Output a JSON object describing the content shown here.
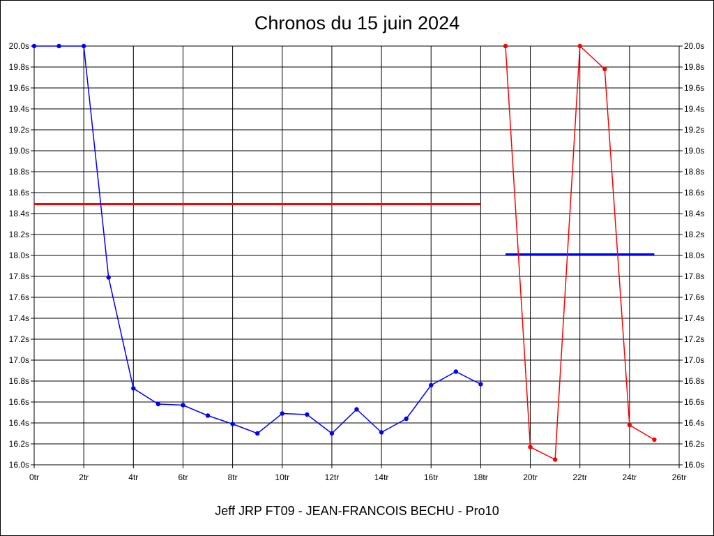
{
  "chart_data": {
    "type": "line",
    "title": "Chronos du 15 juin 2024",
    "subtitle": "Jeff JRP FT09 - JEAN-FRANCOIS BECHU - Pro10",
    "x_ticks": [
      "0tr",
      "2tr",
      "4tr",
      "6tr",
      "8tr",
      "10tr",
      "12tr",
      "14tr",
      "16tr",
      "18tr",
      "20tr",
      "22tr",
      "24tr",
      "26tr"
    ],
    "y_ticks": [
      "16.0s",
      "16.2s",
      "16.4s",
      "16.6s",
      "16.8s",
      "17.0s",
      "17.2s",
      "17.4s",
      "17.6s",
      "17.8s",
      "18.0s",
      "18.2s",
      "18.4s",
      "18.6s",
      "18.8s",
      "19.0s",
      "19.2s",
      "19.4s",
      "19.6s",
      "19.8s",
      "20.0s"
    ],
    "xlim": [
      0,
      26
    ],
    "ylim": [
      16.0,
      20.0
    ],
    "grid": true,
    "series": [
      {
        "color": "#0000ff",
        "x": [
          0,
          1,
          2,
          3,
          4,
          5,
          6,
          7,
          8,
          9,
          10,
          11,
          12,
          13,
          14,
          15,
          16,
          17,
          18
        ],
        "y": [
          20.0,
          20.0,
          20.0,
          17.79,
          16.73,
          16.58,
          16.57,
          16.47,
          16.39,
          16.3,
          16.49,
          16.48,
          16.3,
          16.53,
          16.31,
          16.44,
          16.76,
          16.89,
          16.77
        ]
      },
      {
        "color": "#ff0000",
        "x": [
          19,
          20,
          21,
          22,
          23,
          24,
          25
        ],
        "y": [
          20.0,
          16.17,
          16.05,
          20.0,
          19.78,
          16.38,
          16.24
        ]
      }
    ],
    "reference_lines": [
      {
        "color": "#ff0000",
        "x": [
          0,
          18
        ],
        "y": 18.49
      },
      {
        "color": "#0000ff",
        "x": [
          19,
          25
        ],
        "y": 18.01
      }
    ]
  }
}
